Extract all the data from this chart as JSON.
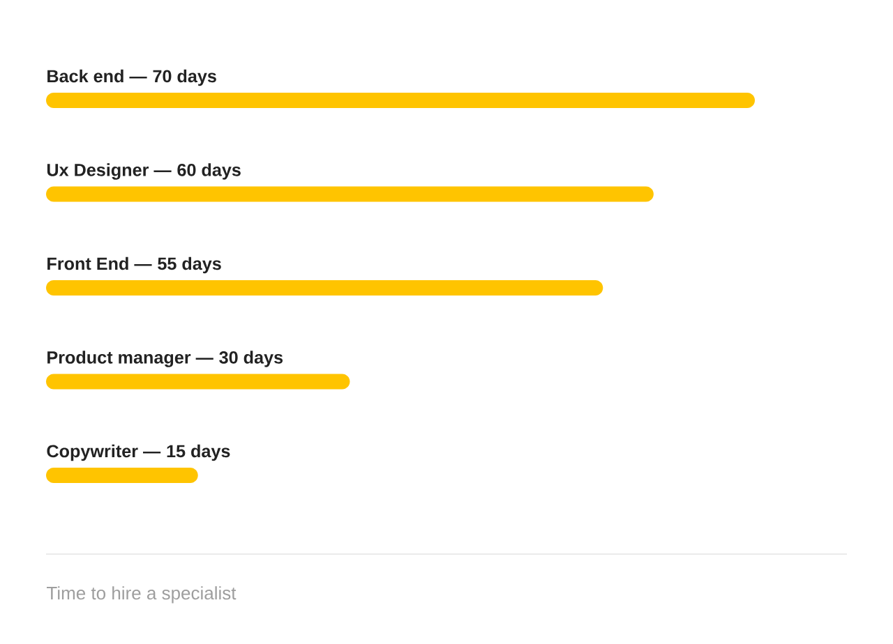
{
  "chart_data": {
    "type": "bar",
    "orientation": "horizontal",
    "categories": [
      "Back end —",
      "Ux Designer —",
      "Front End —",
      "Product manager —",
      "Copywriter —"
    ],
    "values": [
      70,
      60,
      55,
      30,
      15
    ],
    "value_labels": [
      "70 days",
      "60 days",
      "55 days",
      "30 days",
      "15 days"
    ],
    "color": "#ffc400",
    "annotations": [
      "Time to hire a specialist"
    ]
  }
}
